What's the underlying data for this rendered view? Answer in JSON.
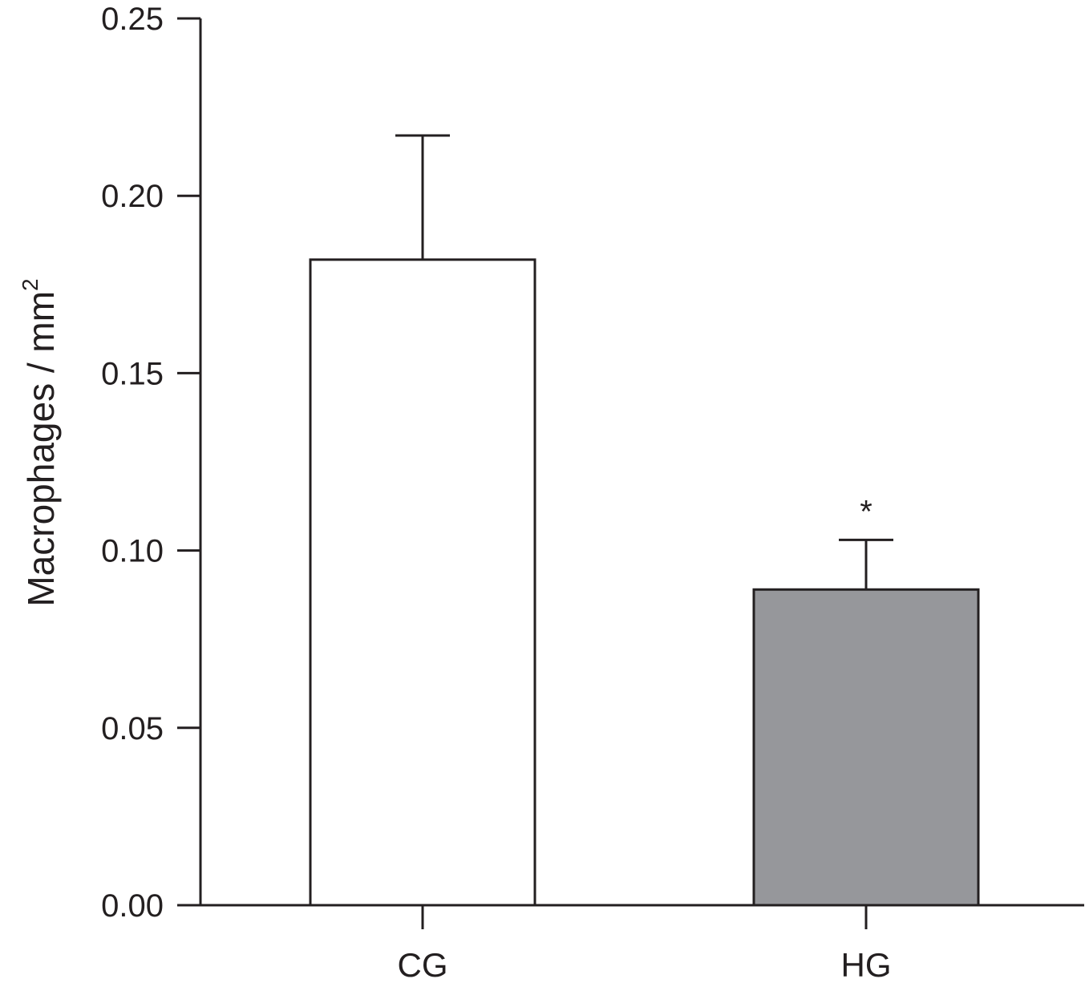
{
  "chart_data": {
    "type": "bar",
    "title": "",
    "xlabel": "",
    "ylabel": "Macrophages / mm",
    "ylabel_superscript": "2",
    "ylim": [
      0,
      0.25
    ],
    "yticks": [
      0.0,
      0.05,
      0.1,
      0.15,
      0.2,
      0.25
    ],
    "ytick_labels": [
      "0.00",
      "0.05",
      "0.10",
      "0.15",
      "0.20",
      "0.25"
    ],
    "categories": [
      "CG",
      "HG"
    ],
    "values": [
      0.182,
      0.089
    ],
    "errors": [
      0.035,
      0.014
    ],
    "colors": [
      "#ffffff",
      "#96979b"
    ],
    "annotations": [
      "",
      "*"
    ],
    "grid": false,
    "legend": "none"
  }
}
